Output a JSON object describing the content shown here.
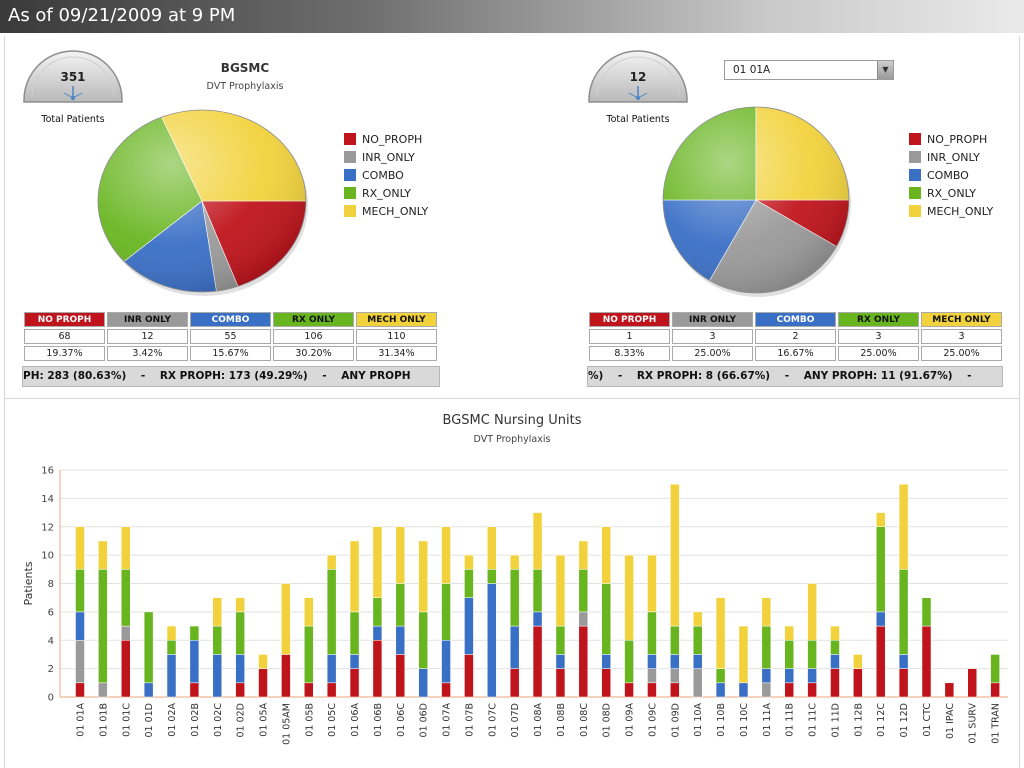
{
  "header": {
    "title": "As of 09/21/2009 at 9 PM"
  },
  "colors": {
    "no_proph": "#c0141c",
    "inr_only": "#9a9a9a",
    "combo": "#3a6fc6",
    "rx_only": "#68b520",
    "mech_only": "#f2d23c"
  },
  "left_panel": {
    "gauge": {
      "value": "351",
      "label": "Total Patients"
    },
    "title": "BGSMC",
    "subtitle": "DVT Prophylaxis",
    "legend": [
      "NO_PROPH",
      "INR_ONLY",
      "COMBO",
      "RX_ONLY",
      "MECH_ONLY"
    ],
    "table": {
      "headers": [
        "NO PROPH",
        "INR ONLY",
        "COMBO",
        "RX ONLY",
        "MECH ONLY"
      ],
      "counts": [
        "68",
        "12",
        "55",
        "106",
        "110"
      ],
      "percents": [
        "19.37%",
        "3.42%",
        "15.67%",
        "30.20%",
        "31.34%"
      ]
    },
    "ticker": "PH: 283 (80.63%)    -    RX PROPH: 173 (49.29%)    -    ANY PROPH"
  },
  "right_panel": {
    "gauge": {
      "value": "12",
      "label": "Total Patients"
    },
    "dropdown": {
      "value": "01 01A"
    },
    "legend": [
      "NO_PROPH",
      "INR_ONLY",
      "COMBO",
      "RX_ONLY",
      "MECH_ONLY"
    ],
    "table": {
      "headers": [
        "NO PROPH",
        "INR ONLY",
        "COMBO",
        "RX ONLY",
        "MECH ONLY"
      ],
      "counts": [
        "1",
        "3",
        "2",
        "3",
        "3"
      ],
      "percents": [
        "8.33%",
        "25.00%",
        "16.67%",
        "25.00%",
        "25.00%"
      ]
    },
    "ticker": "%)    -    RX PROPH: 8 (66.67%)    -    ANY PROPH: 11 (91.67%)    -"
  },
  "chart_data": [
    {
      "type": "pie",
      "title": "BGSMC",
      "subtitle": "DVT Prophylaxis",
      "categories": [
        "NO_PROPH",
        "INR_ONLY",
        "COMBO",
        "RX_ONLY",
        "MECH_ONLY"
      ],
      "values": [
        68,
        12,
        55,
        106,
        110
      ]
    },
    {
      "type": "pie",
      "categories": [
        "NO_PROPH",
        "INR_ONLY",
        "COMBO",
        "RX_ONLY",
        "MECH_ONLY"
      ],
      "values": [
        1,
        3,
        2,
        3,
        3
      ]
    },
    {
      "type": "bar",
      "stacked": true,
      "title": "BGSMC Nursing Units",
      "subtitle": "DVT Prophylaxis",
      "ylabel": "Patients",
      "xlabel": "",
      "ylim": [
        0,
        16
      ],
      "yticks": [
        0,
        2,
        4,
        6,
        8,
        10,
        12,
        14,
        16
      ],
      "grid": true,
      "categories": [
        "01 01A",
        "01 01B",
        "01 01C",
        "01 01D",
        "01 02A",
        "01 02B",
        "01 02C",
        "01 02D",
        "01 05A",
        "01 05AM",
        "01 05B",
        "01 05C",
        "01 06A",
        "01 06B",
        "01 06C",
        "01 06D",
        "01 07A",
        "01 07B",
        "01 07C",
        "01 07D",
        "01 08A",
        "01 08B",
        "01 08C",
        "01 08D",
        "01 09A",
        "01 09C",
        "01 09D",
        "01 10A",
        "01 10B",
        "01 10C",
        "01 11A",
        "01 11B",
        "01 11C",
        "01 11D",
        "01 12B",
        "01 12C",
        "01 12D",
        "01 CTC",
        "01 IPAC",
        "01 SURV",
        "01 TRAN"
      ],
      "series": [
        {
          "name": "NO_PROPH",
          "values": [
            1,
            0,
            4,
            0,
            0,
            1,
            0,
            1,
            2,
            3,
            1,
            1,
            2,
            4,
            3,
            0,
            1,
            3,
            0,
            2,
            5,
            2,
            5,
            2,
            1,
            1,
            1,
            0,
            0,
            0,
            0,
            1,
            1,
            2,
            2,
            5,
            2,
            5,
            1,
            2,
            1
          ]
        },
        {
          "name": "INR_ONLY",
          "values": [
            3,
            1,
            1,
            0,
            0,
            0,
            0,
            0,
            0,
            0,
            0,
            0,
            0,
            0,
            0,
            0,
            0,
            0,
            0,
            0,
            0,
            0,
            1,
            0,
            0,
            1,
            1,
            2,
            0,
            0,
            1,
            0,
            0,
            0,
            0,
            0,
            0,
            0,
            0,
            0,
            0
          ]
        },
        {
          "name": "COMBO",
          "values": [
            2,
            0,
            0,
            1,
            3,
            3,
            3,
            2,
            0,
            0,
            0,
            2,
            1,
            1,
            2,
            2,
            3,
            4,
            8,
            3,
            1,
            1,
            0,
            1,
            0,
            1,
            1,
            1,
            1,
            1,
            1,
            1,
            1,
            1,
            0,
            1,
            1,
            0,
            0,
            0,
            0
          ]
        },
        {
          "name": "RX_ONLY",
          "values": [
            3,
            8,
            4,
            5,
            1,
            1,
            2,
            3,
            0,
            0,
            4,
            6,
            3,
            2,
            3,
            4,
            4,
            2,
            1,
            4,
            3,
            2,
            3,
            5,
            3,
            3,
            2,
            2,
            1,
            0,
            3,
            2,
            2,
            1,
            0,
            6,
            6,
            2,
            0,
            0,
            2
          ]
        },
        {
          "name": "MECH_ONLY",
          "values": [
            3,
            2,
            3,
            0,
            1,
            0,
            2,
            1,
            1,
            5,
            2,
            1,
            5,
            5,
            4,
            5,
            4,
            1,
            3,
            1,
            4,
            5,
            2,
            4,
            6,
            4,
            10,
            1,
            5,
            4,
            2,
            1,
            4,
            1,
            1,
            1,
            6,
            0,
            0,
            0,
            0
          ]
        }
      ]
    }
  ]
}
